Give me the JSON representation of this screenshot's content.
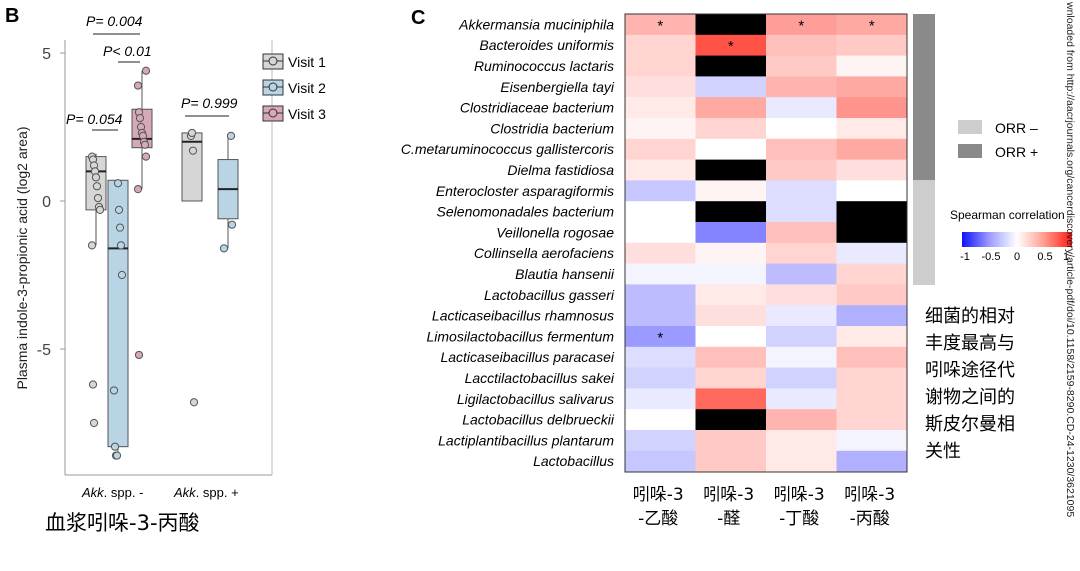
{
  "panel_b": {
    "label": "B",
    "y_axis_label": "Plasma indole-3-propionic acid (log2 area)",
    "y_ticks": [
      "5",
      "0",
      "-5"
    ],
    "x_labels": [
      {
        "italic": "Akk",
        "rest": ". spp. -"
      },
      {
        "italic": "Akk",
        "rest": ". spp. +"
      }
    ],
    "caption": "血浆吲哚-3-丙酸",
    "legend": [
      "Visit 1",
      "Visit 2",
      "Visit 3"
    ],
    "legend_colors": [
      "#d6d6d6",
      "#b9d4e4",
      "#d6a9b9"
    ],
    "p_values": [
      "P= 0.004",
      "P< 0.01",
      "P= 0.054",
      "P= 0.999"
    ]
  },
  "panel_c": {
    "label": "C",
    "species": [
      "Akkermansia muciniphila",
      "Bacteroides uniformis",
      "Ruminococcus lactaris",
      "Eisenbergiella tayi",
      "Clostridiaceae bacterium",
      "Clostridia bacterium",
      "C.metaruminococcus gallistercoris",
      "Dielma fastidiosa",
      "Enterocloster asparagiformis",
      "Selenomonadales bacterium",
      "Veillonella rogosae",
      "Collinsella aerofaciens",
      "Blautia hansenii",
      "Lactobacillus gasseri",
      "Lacticaseibacillus rhamnosus",
      "Limosilactobacillus fermentum",
      "Lacticaseibacillus paracasei",
      "Lacctilactobacillus sakei",
      "Ligilactobacillus salivarus",
      "Lactobacillus delbrueckii",
      "Lactiplantibacillus plantarum",
      "Lactobacillus"
    ],
    "columns": [
      {
        "line1": "吲哚-3",
        "line2": "-乙酸"
      },
      {
        "line1": "吲哚-3",
        "line2": "-醛"
      },
      {
        "line1": "吲哚-3",
        "line2": "-丁酸"
      },
      {
        "line1": "吲哚-3",
        "line2": "-丙酸"
      }
    ],
    "legend_orr": [
      "ORR –",
      "ORR +"
    ],
    "legend_orr_colors": [
      "#cdcdcd",
      "#8a8a8a"
    ],
    "colorbar_title": "Spearman correlation",
    "colorbar_ticks": [
      "-1",
      "-0.5",
      "0",
      "0.5",
      "1"
    ],
    "annotation_lines": [
      "细菌的相对",
      "丰度最高与",
      "吲哚途径代",
      "谢物之间的",
      "斯皮尔曼相",
      "关性"
    ],
    "side_text": "wnloaded from http://aacrjournals.org/cancerdiscovery/article-pdf/doi/10.1158/2159-8290.CD-24-1230/3621095"
  },
  "chart_data": [
    {
      "type": "box",
      "title": "血浆吲哚-3-丙酸",
      "ylabel": "Plasma indole-3-propionic acid (log2 area)",
      "ylim": [
        -8.9,
        5.3
      ],
      "groups": [
        "Akk. spp. -",
        "Akk. spp. +"
      ],
      "series": [
        {
          "name": "Visit 1",
          "group": "Akk. spp. -",
          "box": {
            "q1": -0.3,
            "median": 1.0,
            "q3": 1.5,
            "whisker_low": -1.5,
            "whisker_high": 1.6
          },
          "points": [
            1.5,
            1.4,
            1.2,
            1.0,
            0.8,
            0.5,
            0.1,
            -0.2,
            -0.3,
            -1.5,
            -6.2,
            -7.5
          ]
        },
        {
          "name": "Visit 2",
          "group": "Akk. spp. -",
          "box": {
            "q1": -8.3,
            "median": -1.6,
            "q3": 0.7,
            "whisker_low": -8.6,
            "whisker_high": 0.7
          },
          "points": [
            0.6,
            -0.3,
            -0.9,
            -1.5,
            -2.5,
            -6.4,
            -8.3,
            -8.6,
            -8.6
          ]
        },
        {
          "name": "Visit 3",
          "group": "Akk. spp. -",
          "box": {
            "q1": 1.8,
            "median": 2.1,
            "q3": 3.1,
            "whisker_low": 0.4,
            "whisker_high": 4.4
          },
          "points": [
            4.4,
            3.9,
            3.0,
            2.8,
            2.5,
            2.3,
            2.2,
            2.0,
            1.9,
            1.5,
            0.4,
            -5.2
          ]
        },
        {
          "name": "Visit 1",
          "group": "Akk. spp. +",
          "box": {
            "q1": 0.0,
            "median": 2.0,
            "q3": 2.3,
            "whisker_low": 0.0,
            "whisker_high": 2.3
          },
          "points": [
            2.2,
            2.3,
            1.7,
            -6.8
          ]
        },
        {
          "name": "Visit 2",
          "group": "Akk. spp. +",
          "box": {
            "q1": -0.6,
            "median": 0.4,
            "q3": 1.4,
            "whisker_low": -1.6,
            "whisker_high": 2.2
          },
          "points": [
            2.2,
            -0.8,
            -1.6
          ]
        }
      ],
      "comparisons": [
        {
          "label": "P= 0.004",
          "groups": [
            "Visit 1",
            "Visit 3"
          ],
          "x_group": "Akk. spp. -"
        },
        {
          "label": "P< 0.01",
          "groups": [
            "Visit 2",
            "Visit 3"
          ],
          "x_group": "Akk. spp. -"
        },
        {
          "label": "P= 0.054",
          "groups": [
            "Visit 1",
            "Visit 2"
          ],
          "x_group": "Akk. spp. -"
        },
        {
          "label": "P= 0.999",
          "groups": [
            "Visit 1",
            "Visit 2"
          ],
          "x_group": "Akk. spp. +"
        }
      ]
    },
    {
      "type": "heatmap",
      "title": "Spearman correlation",
      "rows": [
        "Akkermansia muciniphila",
        "Bacteroides uniformis",
        "Ruminococcus lactaris",
        "Eisenbergiella tayi",
        "Clostridiaceae bacterium",
        "Clostridia bacterium",
        "C.metaruminococcus gallistercoris",
        "Dielma fastidiosa",
        "Enterocloster asparagiformis",
        "Selenomonadales bacterium",
        "Veillonella rogosae",
        "Collinsella aerofaciens",
        "Blautia hansenii",
        "Lactobacillus gasseri",
        "Lacticaseibacillus rhamnosus",
        "Limosilactobacillus fermentum",
        "Lacticaseibacillus paracasei",
        "Lacctilactobacillus sakei",
        "Ligilactobacillus salivarus",
        "Lactobacillus delbrueckii",
        "Lactiplantibacillus plantarum",
        "Lactobacillus"
      ],
      "columns": [
        "吲哚-3-乙酸",
        "吲哚-3-醛",
        "吲哚-3-丁酸",
        "吲哚-3-丙酸"
      ],
      "values": [
        [
          0.35,
          null,
          0.45,
          0.4
        ],
        [
          0.2,
          0.8,
          0.3,
          0.25
        ],
        [
          0.2,
          0.05,
          0.25,
          0.05
        ],
        [
          0.15,
          -0.2,
          0.35,
          0.4
        ],
        [
          0.1,
          0.4,
          -0.1,
          0.5
        ],
        [
          0.05,
          0.2,
          0.0,
          0.1
        ],
        [
          0.2,
          null,
          0.3,
          0.4
        ],
        [
          0.1,
          null,
          0.25,
          0.15
        ],
        [
          -0.25,
          0.05,
          -0.15,
          0.0
        ],
        [
          0.0,
          null,
          -0.15,
          null
        ],
        [
          0.0,
          -0.55,
          0.3,
          null
        ],
        [
          0.15,
          0.05,
          0.2,
          -0.1
        ],
        [
          -0.05,
          -0.05,
          -0.3,
          0.2
        ],
        [
          -0.3,
          0.1,
          0.15,
          0.25
        ],
        [
          -0.3,
          0.15,
          -0.1,
          -0.35
        ],
        [
          -0.45,
          0.0,
          -0.2,
          0.1
        ],
        [
          -0.15,
          0.3,
          -0.05,
          0.3
        ],
        [
          -0.2,
          0.2,
          -0.2,
          0.2
        ],
        [
          -0.1,
          0.7,
          -0.1,
          0.2
        ],
        [
          0.0,
          null,
          0.35,
          0.2
        ],
        [
          -0.2,
          0.25,
          0.1,
          -0.05
        ],
        [
          -0.25,
          0.25,
          0.1,
          -0.35
        ]
      ],
      "black_cells": [
        [
          0,
          1
        ],
        [
          2,
          1
        ],
        [
          7,
          1
        ],
        [
          9,
          1
        ],
        [
          9,
          3
        ],
        [
          10,
          3
        ],
        [
          19,
          1
        ]
      ],
      "significant": [
        [
          0,
          0
        ],
        [
          0,
          2
        ],
        [
          0,
          3
        ],
        [
          1,
          1
        ],
        [
          15,
          0
        ]
      ],
      "orr_groups": {
        "ORR +": [
          0,
          7
        ],
        "ORR –": [
          8,
          12
        ]
      },
      "colorbar": {
        "min": -1,
        "max": 1
      }
    }
  ]
}
